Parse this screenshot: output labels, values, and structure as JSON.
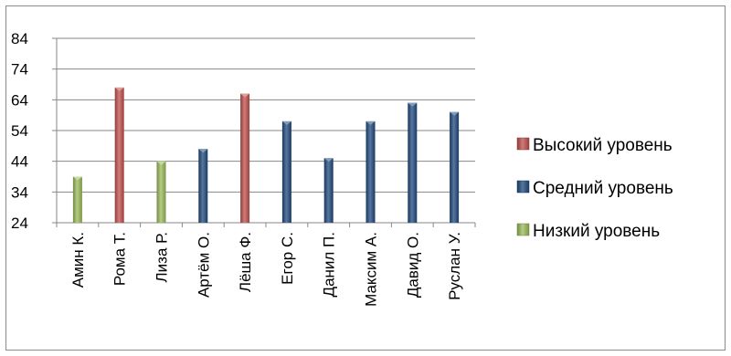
{
  "chart_data": {
    "type": "bar",
    "categories": [
      "Амин К.",
      "Рома Т.",
      "Лиза Р.",
      "Артём О.",
      "Лёша Ф.",
      "Егор С.",
      "Данил П.",
      "Максим А.",
      "Давид О.",
      "Руслан У."
    ],
    "series": [
      {
        "name": "Высокий уровень",
        "color": "#c0504d",
        "values": [
          null,
          68,
          null,
          null,
          66,
          null,
          null,
          null,
          null,
          null
        ]
      },
      {
        "name": "Средний уровень",
        "color": "#1f497d",
        "values": [
          null,
          null,
          null,
          48,
          null,
          57,
          45,
          57,
          63,
          60
        ]
      },
      {
        "name": "Низкий уровень",
        "color": "#9bbb59",
        "values": [
          39,
          null,
          44,
          null,
          null,
          null,
          null,
          null,
          null,
          null
        ]
      }
    ],
    "y_ticks": [
      24,
      34,
      44,
      54,
      64,
      74,
      84
    ],
    "ylim": [
      24,
      84
    ],
    "grid": true,
    "legend_position": "right"
  }
}
